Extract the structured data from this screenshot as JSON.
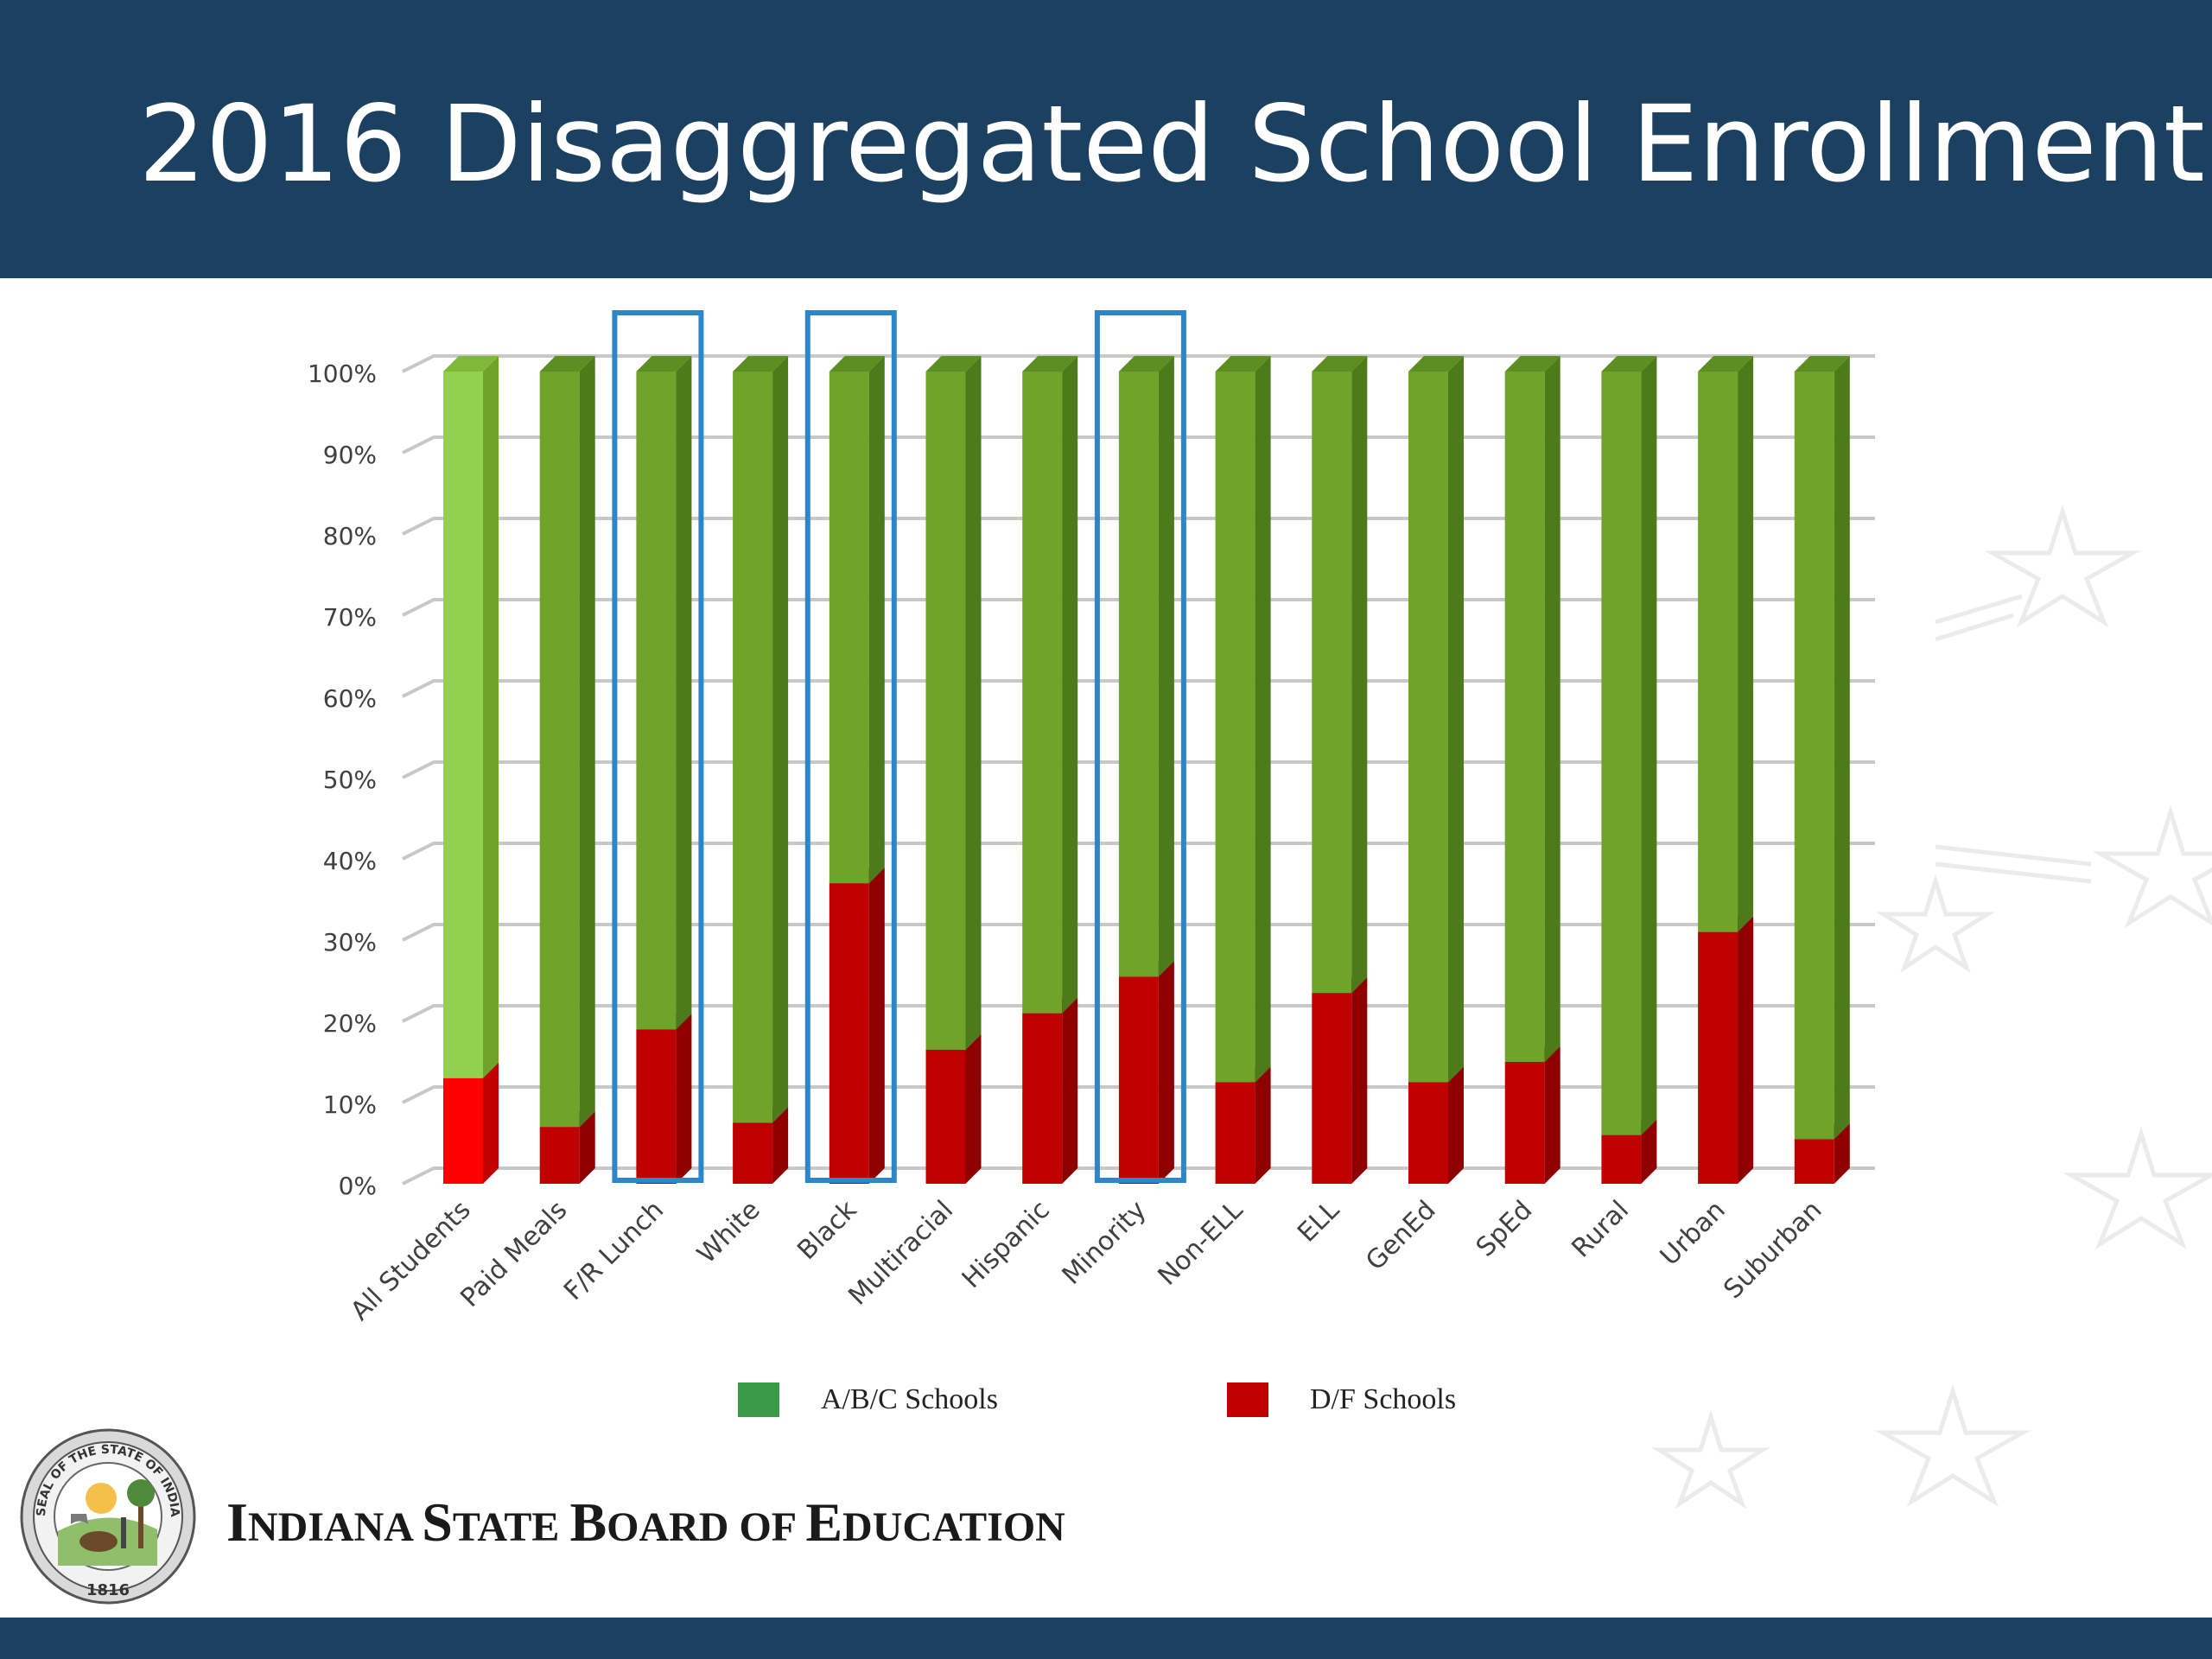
{
  "slide": {
    "title": "2016 Disaggregated School Enrollment",
    "org_name": "Indiana State Board of Education",
    "org_words": [
      {
        "cap": "I",
        "rest": "NDIANA"
      },
      {
        "cap": "S",
        "rest": "TATE"
      },
      {
        "cap": "B",
        "rest": "OARD"
      },
      {
        "cap": "",
        "rest": "OF"
      },
      {
        "cap": "E",
        "rest": "DUCATION"
      }
    ],
    "seal": {
      "top_text": "SEAL OF THE STATE OF INDIANA",
      "year": "1816"
    },
    "colors": {
      "header": "#1b4060",
      "highlight_box": "#2e86c9"
    }
  },
  "chart_data": {
    "type": "bar",
    "stacked": true,
    "percent": true,
    "categories": [
      "All Students",
      "Paid Meals",
      "F/R Lunch",
      "White",
      "Black",
      "Multiracial",
      "Hispanic",
      "Minority",
      "Non-ELL",
      "ELL",
      "GenEd",
      "SpEd",
      "Rural",
      "Urban",
      "Suburban"
    ],
    "series": [
      {
        "name": "A/B/C Schools",
        "color": "#6fa32a",
        "values": [
          87,
          93,
          81,
          92.5,
          63,
          83.5,
          79,
          74.5,
          87.5,
          76.5,
          87.5,
          85,
          94,
          69,
          94.5
        ]
      },
      {
        "name": "D/F Schools",
        "color": "#c00000",
        "values": [
          13,
          7,
          19,
          7.5,
          37,
          16.5,
          21,
          25.5,
          12.5,
          23.5,
          12.5,
          15,
          6,
          31,
          5.5
        ]
      }
    ],
    "first_bar_colors": {
      "A/B/C Schools": "#92d050",
      "D/F Schools": "#ff0000"
    },
    "legend_swatch_colors": {
      "A/B/C Schools": "#3a9a48",
      "D/F Schools": "#c00000"
    },
    "y_ticks": [
      "0%",
      "10%",
      "20%",
      "30%",
      "40%",
      "50%",
      "60%",
      "70%",
      "80%",
      "90%",
      "100%"
    ],
    "ylim": [
      0,
      100
    ],
    "highlighted_categories": [
      "F/R Lunch",
      "Black",
      "Minority"
    ],
    "legend_position": "bottom",
    "grid": true
  }
}
